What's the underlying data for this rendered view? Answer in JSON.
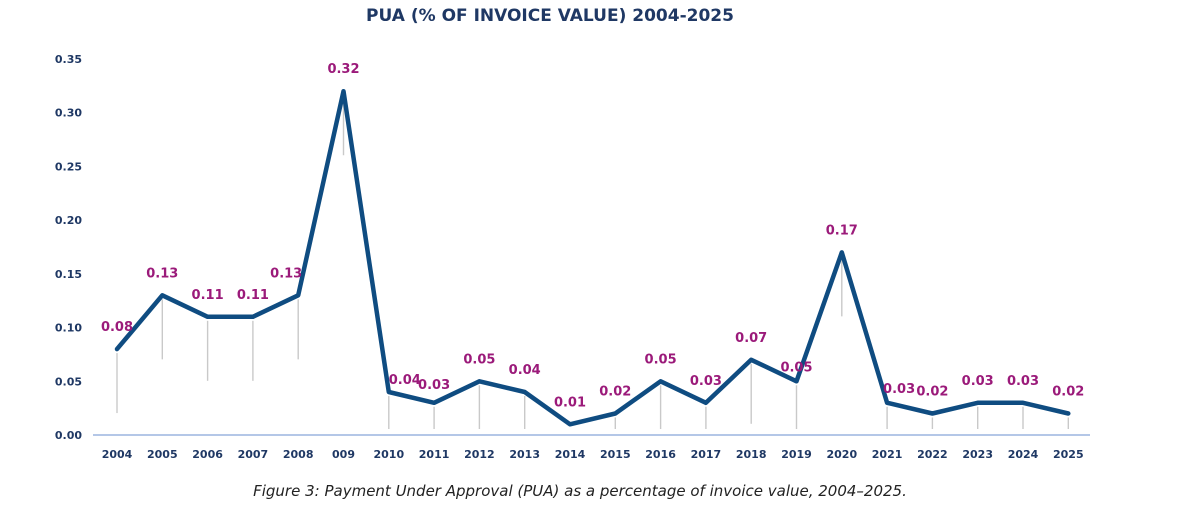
{
  "chart_data": {
    "type": "line",
    "title": "PUA (% OF INVOICE VALUE) 2004-2025",
    "caption": "Figure 3: Payment Under Approval (PUA) as a percentage of invoice value, 2004–2025.",
    "categories": [
      "2004",
      "2005",
      "2006",
      "2007",
      "2008",
      "009",
      "2010",
      "2011",
      "2012",
      "2013",
      "2014",
      "2015",
      "2016",
      "2017",
      "2018",
      "2019",
      "2020",
      "2021",
      "2022",
      "2023",
      "2024",
      "2025"
    ],
    "series": [
      {
        "values": [
          0.08,
          0.13,
          0.11,
          0.11,
          0.13,
          0.32,
          0.04,
          0.03,
          0.05,
          0.04,
          0.01,
          0.02,
          0.05,
          0.03,
          0.07,
          0.05,
          0.17,
          0.03,
          0.02,
          0.03,
          0.03,
          0.02
        ],
        "labels": [
          "0.08",
          "0.13",
          "0.11",
          "0.11",
          "0.13",
          "0.32",
          "0.04",
          "0.03",
          "0.05",
          "0.04",
          "0.01",
          "0.02",
          "0.05",
          "0.03",
          "0.07",
          "0.05",
          "0.17",
          "0.03",
          "0.02",
          "0.03",
          "0.03",
          "0.02"
        ]
      }
    ],
    "yticks": [
      "0.00",
      "0.05",
      "0.10",
      "0.15",
      "0.20",
      "0.25",
      "0.30",
      "0.35"
    ],
    "ylim": [
      0,
      0.35
    ],
    "grid": false,
    "legend": "none",
    "colors": {
      "line": "#0f4c81",
      "label": "#9b1a7a",
      "axis": "#1f3864",
      "baseline": "#b4c7e7",
      "drop": "#c9c9c9"
    }
  }
}
